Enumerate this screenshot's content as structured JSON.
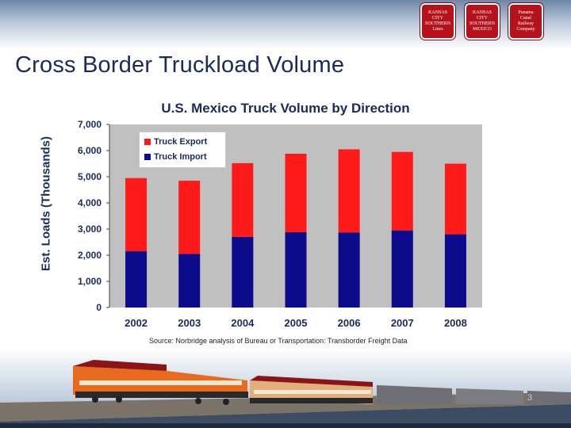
{
  "slide": {
    "title": "Cross Border Truckload Volume",
    "page_number": "3",
    "logos": [
      {
        "name": "Kansas City Southern Lines",
        "lines": [
          "KANSAS",
          "CITY",
          "SOUTHERN",
          "Lines"
        ]
      },
      {
        "name": "Kansas City Southern de Mexico",
        "lines": [
          "KANSAS",
          "CITY",
          "SOUTHERN",
          "MEXICO"
        ]
      },
      {
        "name": "Panama Canal Railway Company",
        "lines": [
          "Panama",
          "Canal",
          "Railway",
          "Company"
        ]
      }
    ]
  },
  "chart_data": {
    "type": "bar",
    "stacked": true,
    "title": "U.S. Mexico Truck Volume by Direction",
    "ylabel": "Est. Loads (Thousands)",
    "xlabel": "",
    "categories": [
      "2002",
      "2003",
      "2004",
      "2005",
      "2006",
      "2007",
      "2008"
    ],
    "series": [
      {
        "name": "Truck Import",
        "color": "#0b0b8c",
        "values": [
          2150,
          2050,
          2700,
          2880,
          2870,
          2950,
          2800
        ]
      },
      {
        "name": "Truck Export",
        "color": "#ff1a1a",
        "values": [
          2800,
          2800,
          2820,
          3000,
          3180,
          3000,
          2700
        ]
      }
    ],
    "legend_order": [
      "Truck Export",
      "Truck Import"
    ],
    "ylim": [
      0,
      7000
    ],
    "yticks": [
      "0",
      "1,000",
      "2,000",
      "3,000",
      "4,000",
      "5,000",
      "6,000",
      "7,000"
    ],
    "grid": false,
    "legend_position": "top-left",
    "plot_background": "#c0c0c0",
    "source": "Source: Norbridge analysis of Bureau or Transportation: Transborder Freight Data"
  },
  "colors": {
    "title": "#1b2a5c",
    "export": "#ff1a1a",
    "import": "#0b0b8c",
    "plot_bg": "#c0c0c0",
    "logo_red": "#b5121b"
  }
}
